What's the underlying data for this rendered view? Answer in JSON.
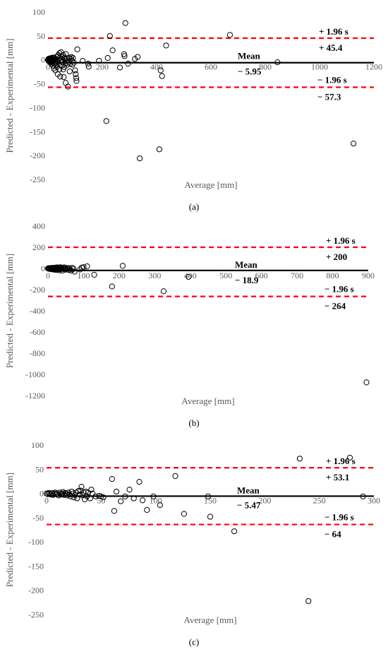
{
  "colors": {
    "limit_line": "#ff0000",
    "mean_line": "#000000",
    "marker_stroke": "#000000",
    "axis_text": "#595959"
  },
  "chart_data": [
    {
      "type": "scatter",
      "caption": "(a)",
      "xlabel": "Average [mm]",
      "ylabel": "Predicted - Experimental [mm]",
      "xlim": [
        0,
        1200
      ],
      "ylim": [
        -250,
        100
      ],
      "xticks": [
        0,
        200,
        400,
        600,
        800,
        1000,
        1200
      ],
      "yticks": [
        -250,
        -200,
        -150,
        -100,
        -50,
        0,
        50,
        100
      ],
      "grid": false,
      "mean": {
        "label": "Mean",
        "value": -5.95,
        "value_label": "− 5.95"
      },
      "upper_limit": {
        "label": "+ 1.96 s",
        "value": 45.4,
        "value_label": "+ 45.4"
      },
      "lower_limit": {
        "label": "− 1.96 s",
        "value": -57.3,
        "value_label": "− 57.3"
      },
      "points": [
        [
          0,
          0
        ],
        [
          1,
          1
        ],
        [
          1,
          -1
        ],
        [
          2,
          2
        ],
        [
          2,
          -2
        ],
        [
          3,
          0
        ],
        [
          3,
          -3
        ],
        [
          4,
          1
        ],
        [
          4,
          -1
        ],
        [
          5,
          2
        ],
        [
          5,
          -2
        ],
        [
          6,
          0
        ],
        [
          6,
          3
        ],
        [
          7,
          -1
        ],
        [
          7,
          -4
        ],
        [
          8,
          2
        ],
        [
          8,
          0
        ],
        [
          9,
          -3
        ],
        [
          10,
          0
        ],
        [
          10,
          -5
        ],
        [
          11,
          3
        ],
        [
          12,
          -2
        ],
        [
          12,
          -8
        ],
        [
          13,
          4
        ],
        [
          14,
          0
        ],
        [
          15,
          -4
        ],
        [
          16,
          3
        ],
        [
          17,
          -6
        ],
        [
          18,
          1
        ],
        [
          18,
          -12
        ],
        [
          20,
          -3
        ],
        [
          20,
          5
        ],
        [
          22,
          0
        ],
        [
          22,
          -18
        ],
        [
          24,
          4
        ],
        [
          25,
          -8
        ],
        [
          26,
          -2
        ],
        [
          27,
          -22
        ],
        [
          28,
          2
        ],
        [
          30,
          -6
        ],
        [
          30,
          -10
        ],
        [
          32,
          1
        ],
        [
          33,
          -15
        ],
        [
          34,
          7
        ],
        [
          35,
          -3
        ],
        [
          36,
          -30
        ],
        [
          38,
          10
        ],
        [
          38,
          0
        ],
        [
          40,
          -8
        ],
        [
          42,
          -20
        ],
        [
          42,
          14
        ],
        [
          44,
          4
        ],
        [
          45,
          -35
        ],
        [
          46,
          -2
        ],
        [
          48,
          16
        ],
        [
          50,
          0
        ],
        [
          50,
          -12
        ],
        [
          52,
          6
        ],
        [
          54,
          -5
        ],
        [
          55,
          10
        ],
        [
          56,
          -20
        ],
        [
          58,
          -36
        ],
        [
          60,
          2
        ],
        [
          60,
          -15
        ],
        [
          62,
          5
        ],
        [
          64,
          -8
        ],
        [
          65,
          -48
        ],
        [
          66,
          12
        ],
        [
          68,
          -2
        ],
        [
          70,
          3
        ],
        [
          72,
          -10
        ],
        [
          74,
          -56
        ],
        [
          76,
          -5
        ],
        [
          78,
          4
        ],
        [
          80,
          -24
        ],
        [
          82,
          -8
        ],
        [
          84,
          2
        ],
        [
          86,
          6
        ],
        [
          88,
          -2
        ],
        [
          90,
          -10
        ],
        [
          92,
          4
        ],
        [
          95,
          -6
        ],
        [
          100,
          -22
        ],
        [
          102,
          -30
        ],
        [
          104,
          -38
        ],
        [
          105,
          -44
        ],
        [
          108,
          22
        ],
        [
          128,
          -2
        ],
        [
          148,
          -8
        ],
        [
          150,
          -14
        ],
        [
          188,
          -2
        ],
        [
          215,
          -128
        ],
        [
          220,
          4
        ],
        [
          228,
          50
        ],
        [
          238,
          20
        ],
        [
          265,
          -16
        ],
        [
          280,
          12
        ],
        [
          282,
          8
        ],
        [
          285,
          77
        ],
        [
          295,
          -8
        ],
        [
          320,
          2
        ],
        [
          330,
          6
        ],
        [
          338,
          -206
        ],
        [
          410,
          -187
        ],
        [
          415,
          -22
        ],
        [
          420,
          -34
        ],
        [
          435,
          30
        ],
        [
          670,
          52
        ],
        [
          845,
          -5
        ],
        [
          1125,
          -175
        ]
      ]
    },
    {
      "type": "scatter",
      "caption": "(b)",
      "xlabel": "Average [mm]",
      "ylabel": "Predicted - Experimental [mm]",
      "xlim": [
        0,
        900
      ],
      "ylim": [
        -1200,
        400
      ],
      "xticks": [
        0,
        100,
        200,
        300,
        400,
        500,
        600,
        700,
        800,
        900
      ],
      "yticks": [
        -1200,
        -1000,
        -800,
        -600,
        -400,
        -200,
        0,
        200,
        400
      ],
      "grid": false,
      "mean": {
        "label": "Mean",
        "value": -18.9,
        "value_label": "− 18.9"
      },
      "upper_limit": {
        "label": "+ 1.96 s",
        "value": 200,
        "value_label": "+ 200"
      },
      "lower_limit": {
        "label": "− 1.96 s",
        "value": -264,
        "value_label": "− 264"
      },
      "points": [
        [
          0,
          0
        ],
        [
          1,
          2
        ],
        [
          2,
          -2
        ],
        [
          3,
          1
        ],
        [
          4,
          -4
        ],
        [
          5,
          3
        ],
        [
          6,
          0
        ],
        [
          7,
          -6
        ],
        [
          8,
          4
        ],
        [
          9,
          -2
        ],
        [
          10,
          0
        ],
        [
          11,
          -8
        ],
        [
          12,
          5
        ],
        [
          13,
          -3
        ],
        [
          14,
          1
        ],
        [
          15,
          -10
        ],
        [
          16,
          6
        ],
        [
          17,
          -4
        ],
        [
          18,
          2
        ],
        [
          19,
          -12
        ],
        [
          20,
          0
        ],
        [
          21,
          8
        ],
        [
          22,
          -6
        ],
        [
          23,
          3
        ],
        [
          24,
          -14
        ],
        [
          25,
          0
        ],
        [
          26,
          10
        ],
        [
          27,
          -5
        ],
        [
          28,
          2
        ],
        [
          29,
          -8
        ],
        [
          30,
          0
        ],
        [
          31,
          6
        ],
        [
          32,
          -18
        ],
        [
          33,
          4
        ],
        [
          34,
          -2
        ],
        [
          35,
          12
        ],
        [
          36,
          -8
        ],
        [
          38,
          0
        ],
        [
          40,
          -20
        ],
        [
          42,
          6
        ],
        [
          44,
          -4
        ],
        [
          46,
          10
        ],
        [
          48,
          -12
        ],
        [
          50,
          0
        ],
        [
          52,
          -6
        ],
        [
          55,
          4
        ],
        [
          58,
          -15
        ],
        [
          60,
          2
        ],
        [
          62,
          -10
        ],
        [
          65,
          -20
        ],
        [
          68,
          6
        ],
        [
          72,
          -4
        ],
        [
          75,
          -30
        ],
        [
          90,
          -10
        ],
        [
          95,
          8
        ],
        [
          100,
          12
        ],
        [
          110,
          20
        ],
        [
          130,
          -60
        ],
        [
          180,
          -170
        ],
        [
          210,
          25
        ],
        [
          325,
          -215
        ],
        [
          395,
          -80
        ],
        [
          895,
          -1075
        ]
      ]
    },
    {
      "type": "scatter",
      "caption": "(c)",
      "xlabel": "Average [mm]",
      "ylabel": "Predicted - Experimental [mm]",
      "xlim": [
        0,
        300
      ],
      "ylim": [
        -250,
        100
      ],
      "xticks": [
        0,
        50,
        100,
        150,
        200,
        250,
        300
      ],
      "yticks": [
        -250,
        -200,
        -150,
        -100,
        -50,
        0,
        50,
        100
      ],
      "grid": false,
      "mean": {
        "label": "Mean",
        "value": -5.47,
        "value_label": "− 5.47"
      },
      "upper_limit": {
        "label": "+ 1.96 s",
        "value": 53.1,
        "value_label": "+ 53.1"
      },
      "lower_limit": {
        "label": "− 1.96 s",
        "value": -64,
        "value_label": "− 64"
      },
      "points": [
        [
          0,
          0
        ],
        [
          1,
          -1
        ],
        [
          2,
          1
        ],
        [
          3,
          0
        ],
        [
          4,
          -2
        ],
        [
          5,
          1
        ],
        [
          6,
          -3
        ],
        [
          7,
          0
        ],
        [
          8,
          2
        ],
        [
          9,
          -1
        ],
        [
          10,
          0
        ],
        [
          11,
          -4
        ],
        [
          12,
          2
        ],
        [
          13,
          -2
        ],
        [
          14,
          0
        ],
        [
          15,
          3
        ],
        [
          16,
          -3
        ],
        [
          17,
          1
        ],
        [
          18,
          0
        ],
        [
          19,
          -4
        ],
        [
          20,
          2
        ],
        [
          21,
          -2
        ],
        [
          22,
          -6
        ],
        [
          23,
          4
        ],
        [
          24,
          0
        ],
        [
          25,
          -8
        ],
        [
          26,
          -3
        ],
        [
          27,
          2
        ],
        [
          28,
          -10
        ],
        [
          29,
          5
        ],
        [
          30,
          -2
        ],
        [
          31,
          6
        ],
        [
          32,
          14
        ],
        [
          33,
          -4
        ],
        [
          34,
          2
        ],
        [
          35,
          -12
        ],
        [
          36,
          4
        ],
        [
          37,
          -6
        ],
        [
          38,
          2
        ],
        [
          40,
          -10
        ],
        [
          41,
          8
        ],
        [
          42,
          0
        ],
        [
          45,
          -6
        ],
        [
          48,
          -5
        ],
        [
          50,
          -6
        ],
        [
          52,
          -8
        ],
        [
          60,
          30
        ],
        [
          62,
          -36
        ],
        [
          64,
          4
        ],
        [
          68,
          -16
        ],
        [
          72,
          -6
        ],
        [
          76,
          8
        ],
        [
          80,
          -10
        ],
        [
          85,
          24
        ],
        [
          88,
          -14
        ],
        [
          92,
          -34
        ],
        [
          98,
          -6
        ],
        [
          104,
          -24
        ],
        [
          118,
          36
        ],
        [
          126,
          -42
        ],
        [
          148,
          -6
        ],
        [
          150,
          -48
        ],
        [
          172,
          -78
        ],
        [
          232,
          72
        ],
        [
          240,
          -222
        ],
        [
          278,
          74
        ],
        [
          290,
          -6
        ]
      ]
    }
  ]
}
